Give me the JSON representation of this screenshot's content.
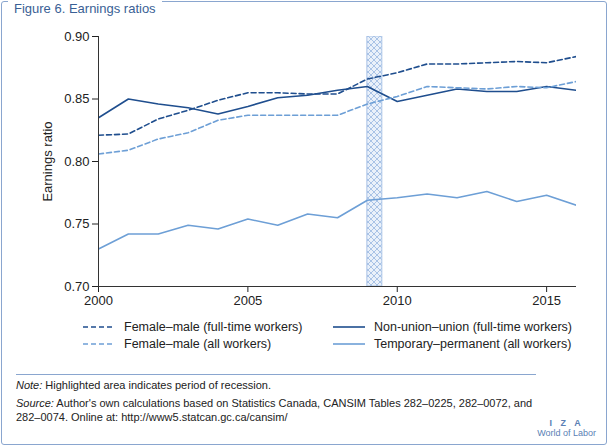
{
  "chart_data": {
    "type": "line",
    "title": "Figure 6. Earnings ratios",
    "y_label": "Earnings ratio",
    "x": [
      2000,
      2001,
      2002,
      2003,
      2004,
      2005,
      2006,
      2007,
      2008,
      2009,
      2010,
      2011,
      2012,
      2013,
      2014,
      2015,
      2016
    ],
    "series": [
      {
        "name": "Female–male (full-time workers)",
        "color": "#1f4e8e",
        "line_style": "dashed",
        "values": [
          0.821,
          0.822,
          0.834,
          0.841,
          0.849,
          0.855,
          0.855,
          0.854,
          0.854,
          0.866,
          0.871,
          0.878,
          0.878,
          0.879,
          0.88,
          0.879,
          0.884
        ]
      },
      {
        "name": "Non-union–union (full-time workers)",
        "color": "#1f4e8e",
        "line_style": "solid",
        "values": [
          0.835,
          0.85,
          0.846,
          0.843,
          0.838,
          0.844,
          0.851,
          0.853,
          0.857,
          0.86,
          0.848,
          0.853,
          0.858,
          0.856,
          0.856,
          0.86,
          0.857
        ]
      },
      {
        "name": "Female–male (all workers)",
        "color": "#6d9fd6",
        "line_style": "dashed",
        "values": [
          0.806,
          0.809,
          0.818,
          0.823,
          0.833,
          0.837,
          0.837,
          0.837,
          0.837,
          0.846,
          0.852,
          0.86,
          0.859,
          0.858,
          0.86,
          0.859,
          0.864
        ]
      },
      {
        "name": "Temporary–permanent (all workers)",
        "color": "#6d9fd6",
        "line_style": "solid",
        "values": [
          0.73,
          0.742,
          0.742,
          0.749,
          0.746,
          0.754,
          0.749,
          0.758,
          0.755,
          0.769,
          0.771,
          0.774,
          0.771,
          0.776,
          0.768,
          0.773,
          0.765
        ]
      }
    ],
    "recession": [
      2009,
      2009.5
    ],
    "xlim": [
      2000,
      2016
    ],
    "xticks": [
      2000,
      2005,
      2010,
      2015
    ],
    "ylim": [
      0.7,
      0.9
    ],
    "yticks": [
      {
        "value": 0.7,
        "label": "0.70"
      },
      {
        "value": 0.75,
        "label": "0.75"
      },
      {
        "value": 0.8,
        "label": "0.80"
      },
      {
        "value": 0.85,
        "label": "0.85"
      },
      {
        "value": 0.9,
        "label": "0.90"
      }
    ],
    "grid": false,
    "legend": "bottom",
    "note_label": "Note:",
    "note": "Highlighted area indicates period of recession.",
    "source_label": "Source:",
    "source": "Author's own calculations based on Statistics Canada, CANSIM Tables 282–0225, 282–0072, and 282–0074. Online at: http://www5.statcan.gc.ca/cansim/",
    "logo": [
      "I Z A",
      "World of Labor"
    ]
  }
}
